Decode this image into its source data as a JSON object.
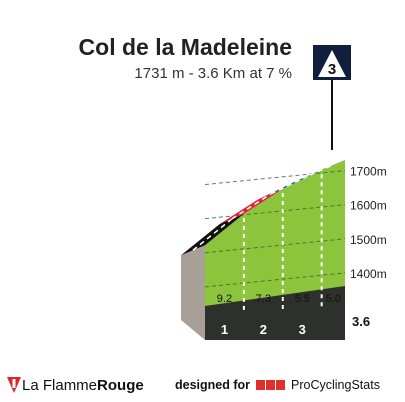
{
  "header": {
    "title": "Col de la Madeleine",
    "subtitle": "1731 m - 3.6 Km at 7 %"
  },
  "category_badge": {
    "label": "3"
  },
  "chart_data": {
    "type": "area",
    "title": "Col de la Madeleine",
    "subtitle": "1731 m - 3.6 Km at 7 %",
    "xlabel": "",
    "ylabel": "",
    "x_unit": "km",
    "y_unit": "m",
    "x": [
      0,
      1,
      2,
      3,
      3.6
    ],
    "elevation": [
      1481,
      1573,
      1646,
      1701,
      1731
    ],
    "ylim": [
      1300,
      1731
    ],
    "xlim": [
      0,
      3.6
    ],
    "y_ticks": [
      {
        "value": 1400,
        "label": "1400m"
      },
      {
        "value": 1500,
        "label": "1500m"
      },
      {
        "value": 1600,
        "label": "1600m"
      },
      {
        "value": 1700,
        "label": "1700m"
      }
    ],
    "segments": [
      {
        "from_km": 0,
        "to_km": 1,
        "gradient": 9.2,
        "label": "9.2",
        "color": "#111111"
      },
      {
        "from_km": 1,
        "to_km": 2,
        "gradient": 7.3,
        "label": "7.3",
        "color": "#e8203a"
      },
      {
        "from_km": 2,
        "to_km": 3,
        "gradient": 5.5,
        "label": "5.5",
        "color": "#1f6e96"
      },
      {
        "from_km": 3,
        "to_km": 3.6,
        "gradient": 5.0,
        "label": "5.0",
        "color": "#1f6e96"
      }
    ],
    "km_labels": [
      "1",
      "2",
      "3",
      "3.6"
    ],
    "grid": true,
    "fill_color": "#8cc43c",
    "ground_color": "#2e302d",
    "side_color": "#a8a096",
    "grid_color": "#2e6b2e"
  },
  "footer": {
    "brand_prefix": "La Flamme",
    "brand_suffix": "Rouge",
    "credit_prefix": "designed for",
    "credit_logo_letters": "PCS",
    "credit_name": "ProCyclingStats"
  }
}
